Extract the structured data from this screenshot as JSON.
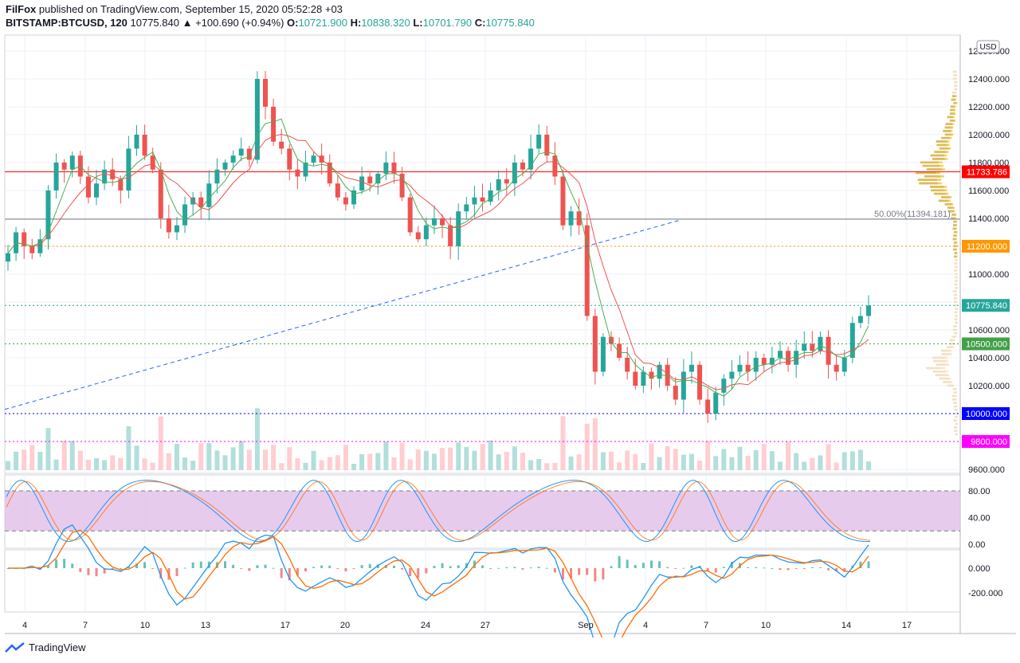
{
  "header": {
    "publisher": "FilFox",
    "published_text": "published on TradingView.com, September 15, 2020 05:52:28 +03",
    "symbol": "BITSTAMP:BTCUSD, 120",
    "last": "10775.840",
    "change": "+100.690 (+0.94%)",
    "o_label": "O:",
    "o_value": "10721.900",
    "h_label": "H:",
    "h_value": "10838.320",
    "l_label": "L:",
    "l_value": "10701.790",
    "c_label": "C:",
    "c_value": "10775.840"
  },
  "footer": {
    "brand": "TradingView"
  },
  "colors": {
    "up": "#26a69a",
    "down": "#ef5350",
    "ma_red": "#ef5350",
    "ma_green": "#4caf50",
    "resistance": "#ff0000",
    "support_orange": "#ff9800",
    "support_green": "#43a047",
    "support_blue": "#0000ff",
    "magenta": "#ff00ff",
    "trend": "#2962ff",
    "stoch_fill": "#e1bee7",
    "macd_line": "#2196f3",
    "signal_line": "#ff6d00"
  },
  "chart_data": {
    "type": "candlestick",
    "currency_badge": "USD",
    "x_ticks": [
      "4",
      "7",
      "10",
      "13",
      "17",
      "20",
      "24",
      "27",
      "Sep",
      "4",
      "7",
      "10",
      "14",
      "17"
    ],
    "price_ticks": [
      "12600.000",
      "12400.000",
      "12200.000",
      "12000.000",
      "11800.000",
      "11600.000",
      "11400.000",
      "11200.000",
      "11000.000",
      "10800.000",
      "10600.000",
      "10400.000",
      "10200.000",
      "10000.000",
      "9800.000",
      "9600.000"
    ],
    "ylim": [
      9600,
      12600
    ],
    "price_tags": [
      {
        "value": "11733.786",
        "color": "#ff0000"
      },
      {
        "value": "11200.000",
        "color": "#ff9800"
      },
      {
        "value": "10775.840",
        "color": "#26a69a"
      },
      {
        "value": "10500.000",
        "color": "#43a047"
      },
      {
        "value": "10000.000",
        "color": "#0000ff"
      },
      {
        "value": "9800.000",
        "color": "#ff00ff"
      }
    ],
    "fib_label": "50.00%(11394.181)",
    "horizontal_levels": [
      11733.786,
      11394.181,
      11200,
      10775.84,
      10500,
      10000,
      9800
    ],
    "trendline": {
      "from": [
        "4",
        10030
      ],
      "to": [
        "Sep 3",
        11310
      ]
    },
    "close_series": [
      11150,
      11300,
      11200,
      11150,
      11250,
      11600,
      11800,
      11750,
      11850,
      11700,
      11550,
      11650,
      11750,
      11680,
      11600,
      11900,
      12000,
      11850,
      11750,
      11400,
      11300,
      11350,
      11500,
      11550,
      11480,
      11650,
      11750,
      11800,
      11850,
      11900,
      11820,
      12400,
      12200,
      11950,
      11900,
      11750,
      11700,
      11800,
      11850,
      11800,
      11650,
      11550,
      11500,
      11600,
      11700,
      11650,
      11720,
      11800,
      11720,
      11550,
      11300,
      11250,
      11350,
      11400,
      11350,
      11200,
      11450,
      11500,
      11550,
      11520,
      11600,
      11680,
      11650,
      11800,
      11750,
      11900,
      12000,
      11850,
      11700,
      11350,
      11450,
      11350,
      10700,
      10300,
      10550,
      10500,
      10400,
      10300,
      10200,
      10300,
      10250,
      10350,
      10200,
      10100,
      10300,
      10350,
      10100,
      10000,
      10150,
      10250,
      10300,
      10350,
      10300,
      10400,
      10350,
      10400,
      10450,
      10350,
      10450,
      10500,
      10450,
      10550,
      10350,
      10300,
      10400,
      10650,
      10700,
      10775
    ],
    "stoch": {
      "levels": [
        80,
        20
      ],
      "ticks": [
        "80.00",
        "40.00",
        "0.00"
      ]
    },
    "macd": {
      "ticks": [
        "0.000",
        "-200.000"
      ]
    }
  }
}
